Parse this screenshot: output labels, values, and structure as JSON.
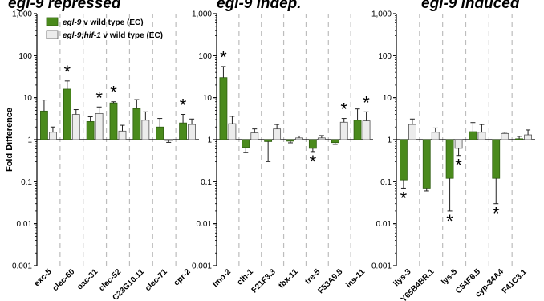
{
  "header_fragments": [
    "egl-9 repressed",
    "egl-9 indep.",
    "egl-9 induced"
  ],
  "colors": {
    "egl9": "#4a8a1c",
    "egl9_hif1": "#ececec",
    "grid": "#bdbdbd",
    "axis": "#000000"
  },
  "chart_data": [
    {
      "type": "bar",
      "ylabel": "Fold Difference",
      "yscale": "log",
      "ylim": [
        0.001,
        1000
      ],
      "yticks": [
        "0.001",
        "0.01",
        "0.1",
        "1",
        "10",
        "100",
        "1,000"
      ],
      "legend": {
        "placement": "top-left",
        "entries": [
          {
            "name_italic": "egl-9",
            "name_rest": " v wild type (EC)"
          },
          {
            "name_italic": "egl-9;hif-1",
            "name_rest": " v wild type (EC)"
          }
        ]
      },
      "categories": [
        "exc-5",
        "clec-60",
        "oac-31",
        "clec-52",
        "C23G10.11",
        "clec-71",
        "cpr-2"
      ],
      "series": [
        {
          "name": "egl-9 v wild type (EC)",
          "values": [
            4.8,
            16,
            2.7,
            7.5,
            5.5,
            2.0,
            2.5
          ],
          "errors": [
            4.0,
            9.0,
            0.8,
            0.5,
            3.5,
            1.2,
            1.5
          ]
        },
        {
          "name": "egl-9;hif-1 v wild type (EC)",
          "values": [
            1.5,
            4.0,
            4.2,
            1.6,
            2.9,
            0.98,
            2.3
          ],
          "errors": [
            0.5,
            1.2,
            1.8,
            0.6,
            1.7,
            0.12,
            0.8
          ]
        }
      ],
      "significance": [
        {
          "category": "clec-60",
          "series": 0,
          "side": "above"
        },
        {
          "category": "oac-31",
          "series": 1,
          "side": "above"
        },
        {
          "category": "clec-52",
          "series": 0,
          "side": "above"
        },
        {
          "category": "cpr-2",
          "series": 0,
          "side": "above"
        }
      ]
    },
    {
      "type": "bar",
      "ylabel": "",
      "yscale": "log",
      "ylim": [
        0.001,
        1000
      ],
      "yticks": [
        "0.001",
        "0.01",
        "0.1",
        "1",
        "10",
        "100",
        "1,000"
      ],
      "categories": [
        "fmo-2",
        "clh-1",
        "F21F3.3",
        "tbx-11",
        "tre-5",
        "F53A9.8",
        "ins-11"
      ],
      "series": [
        {
          "name": "egl-9 v wild type (EC)",
          "values": [
            30,
            0.65,
            0.9,
            0.92,
            0.62,
            0.85,
            2.9
          ],
          "errors": [
            25,
            0.15,
            0.6,
            0.08,
            0.1,
            0.08,
            2.5
          ]
        },
        {
          "name": "egl-9;hif-1 v wild type (EC)",
          "values": [
            2.4,
            1.45,
            1.8,
            1.1,
            1.1,
            2.6,
            2.8
          ],
          "errors": [
            1.2,
            0.35,
            0.5,
            0.12,
            0.15,
            0.6,
            1.8
          ]
        }
      ],
      "significance": [
        {
          "category": "fmo-2",
          "series": 0,
          "side": "above"
        },
        {
          "category": "tre-5",
          "series": 0,
          "side": "below"
        },
        {
          "category": "F53A9.8",
          "series": 1,
          "side": "above"
        },
        {
          "category": "ins-11",
          "series": 1,
          "side": "above"
        }
      ]
    },
    {
      "type": "bar",
      "ylabel": "",
      "yscale": "log",
      "ylim": [
        0.001,
        1000
      ],
      "yticks": [
        "0.001",
        "0.01",
        "0.1",
        "1",
        "10",
        "100",
        "1,000"
      ],
      "categories": [
        "ilys-3",
        "Y65B4BR.1",
        "lys-5",
        "C54F6.5",
        "cyp-34A4",
        "F41C3.1"
      ],
      "series": [
        {
          "name": "egl-9 v wild type (EC)",
          "values": [
            0.11,
            0.07,
            0.12,
            1.55,
            0.12,
            1.05
          ],
          "errors": [
            0.04,
            0.01,
            0.1,
            1.0,
            0.09,
            0.15
          ]
        },
        {
          "name": "egl-9;hif-1 v wild type (EC)",
          "values": [
            2.3,
            1.5,
            0.62,
            1.5,
            1.4,
            1.3
          ],
          "errors": [
            0.8,
            0.4,
            0.2,
            0.8,
            0.1,
            0.4
          ]
        }
      ],
      "significance": [
        {
          "category": "ilys-3",
          "series": 0,
          "side": "below"
        },
        {
          "category": "lys-5",
          "series": 0,
          "side": "below"
        },
        {
          "category": "lys-5",
          "series": 1,
          "side": "below"
        },
        {
          "category": "cyp-34A4",
          "series": 0,
          "side": "below"
        }
      ]
    }
  ]
}
